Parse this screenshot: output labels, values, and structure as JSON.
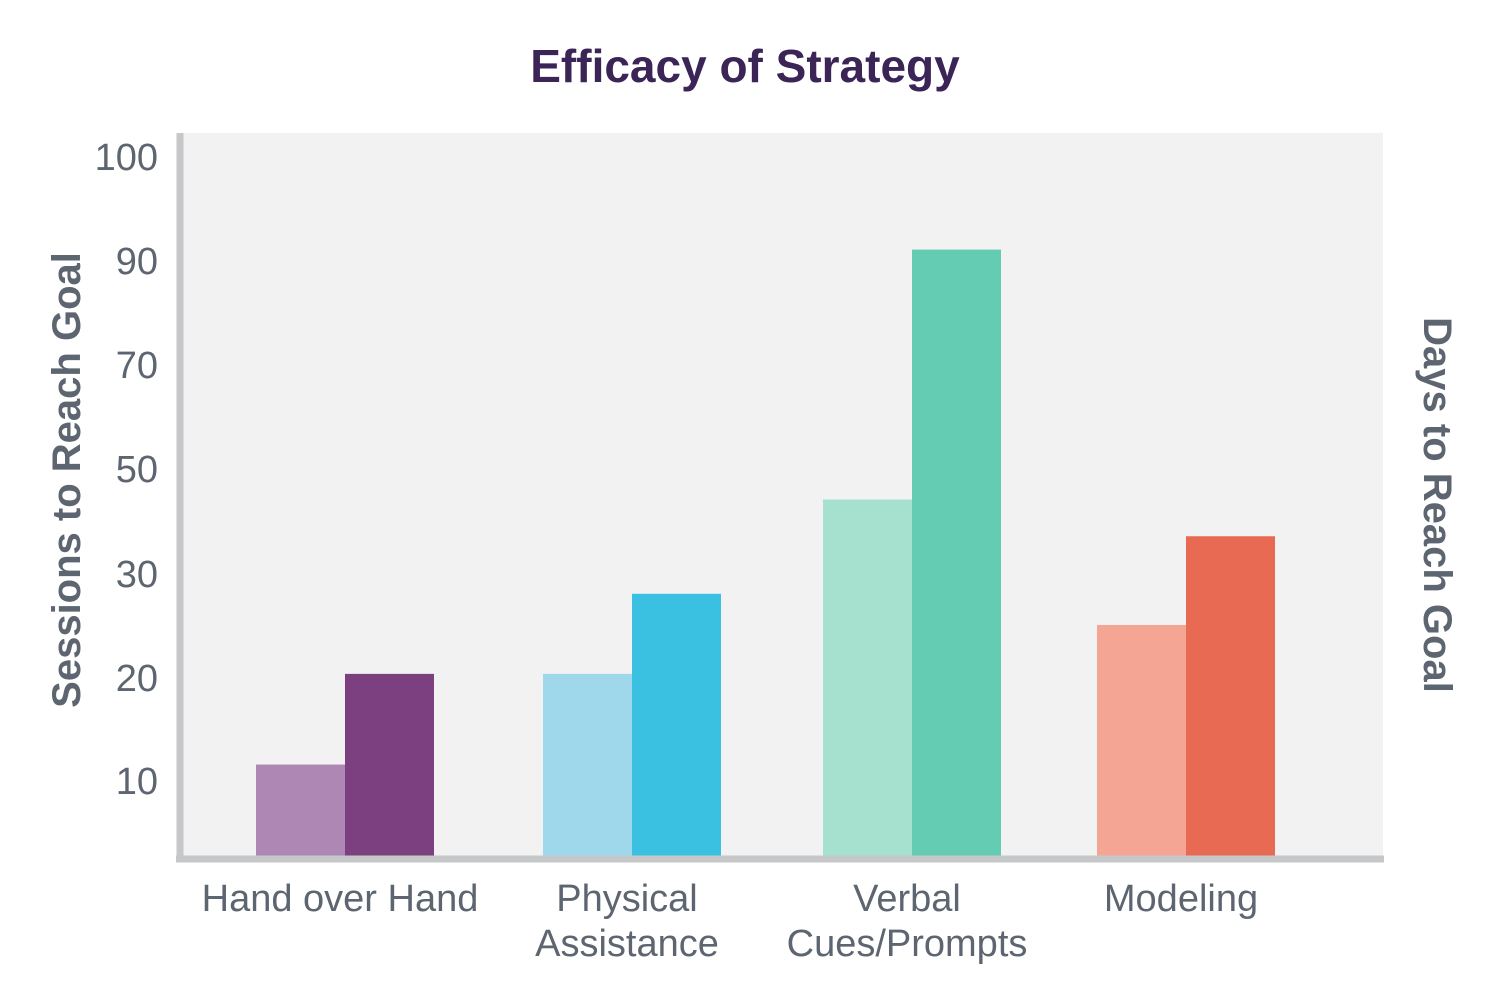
{
  "chart_data": {
    "type": "bar",
    "title": "Efficacy of Strategy",
    "ylabel_left": "Sessions to Reach Goal",
    "ylabel_right": "Days to Reach Goal",
    "categories": [
      {
        "name": "Hand over Hand",
        "lines": [
          "Hand over Hand"
        ]
      },
      {
        "name": "Physical Assistance",
        "lines": [
          "Physical",
          "Assistance"
        ]
      },
      {
        "name": "Verbal Cues/Prompts",
        "lines": [
          "Verbal",
          "Cues/Prompts"
        ]
      },
      {
        "name": "Modeling",
        "lines": [
          "Modeling"
        ]
      }
    ],
    "y_ticks": [
      10,
      20,
      30,
      50,
      70,
      90,
      100
    ],
    "series": [
      {
        "values": [
          11.5,
          20.3,
          44.0,
          25.0
        ],
        "colors": [
          "#af87b5",
          "#a0d8eb",
          "#a6e1d0",
          "#f5a593"
        ]
      },
      {
        "values": [
          20.3,
          28.0,
          91.0,
          37.0
        ],
        "colors": [
          "#7c3f80",
          "#3ac1e1",
          "#64ccb2",
          "#e86a52"
        ]
      }
    ],
    "grid": false,
    "legend": "none",
    "colors": {
      "title": "#3b2456",
      "text": "#5d6670",
      "axis": "#c6c7c9",
      "plot_bg": "#f1f2f1"
    }
  }
}
